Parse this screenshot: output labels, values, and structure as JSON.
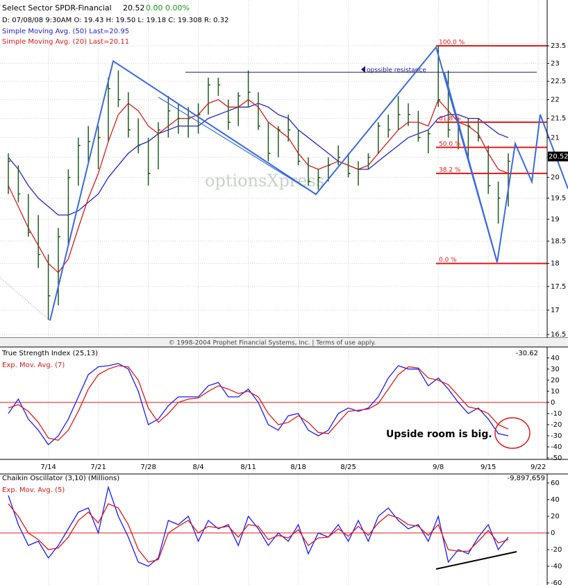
{
  "header": {
    "title": "Select Sector SPDR-Financial",
    "last": "20.52",
    "change": "0.00",
    "change_pct": "0.00%",
    "ohlc": "D: 07/08/08 9:30AM  O: 19.43  H: 19.50  L: 19.18  C: 19.308  R: 0.32"
  },
  "copyright": "© 1998-2004 Prophet Financial Systems, Inc. | Terms of use apply.",
  "watermark": "optionsXpress",
  "chart_data": [
    {
      "type": "ohlc",
      "log": true,
      "grid": true,
      "bar_color": "#1f5c1f",
      "ylim": [
        16.5,
        23.5
      ],
      "yticks": [
        16.5,
        17,
        17.5,
        18,
        18.5,
        19,
        19.5,
        20,
        20.5,
        21,
        21.5,
        22,
        22.5,
        23,
        23.5
      ],
      "high": [
        20.6,
        20.3,
        19.6,
        19.1,
        18.2,
        18.8,
        20.2,
        21.0,
        21.3,
        21.3,
        22.6,
        22.8,
        22.2,
        21.5,
        21.0,
        21.4,
        22.1,
        21.9,
        21.8,
        21.9,
        22.6,
        22.6,
        22.0,
        22.2,
        22.8,
        22.2,
        21.4,
        21.3,
        21.6,
        21.2,
        20.5,
        20.2,
        20.5,
        20.8,
        20.6,
        20.4,
        20.6,
        21.4,
        21.6,
        22.1,
        21.9,
        21.7,
        21.2,
        23.5,
        22.8,
        21.5,
        21.5,
        21.5,
        20.8,
        19.9,
        20.6,
        null,
        null,
        null
      ],
      "low": [
        19.6,
        19.4,
        18.6,
        17.9,
        16.8,
        17.1,
        18.4,
        19.8,
        20.4,
        20.2,
        20.9,
        21.8,
        21.0,
        20.6,
        19.8,
        20.2,
        21.0,
        21.1,
        21.0,
        21.1,
        21.6,
        22.1,
        21.2,
        21.3,
        21.8,
        21.2,
        20.4,
        20.5,
        20.9,
        20.3,
        19.8,
        19.7,
        19.9,
        20.3,
        20.0,
        19.8,
        20.2,
        20.6,
        21.0,
        21.2,
        21.3,
        20.9,
        20.6,
        21.8,
        21.0,
        20.7,
        20.4,
        20.9,
        19.6,
        18.9,
        19.3,
        null,
        null,
        null
      ],
      "close": [
        20.4,
        19.6,
        18.7,
        18.2,
        17.3,
        18.6,
        20.0,
        20.8,
        20.9,
        21.0,
        22.3,
        22.0,
        21.2,
        20.8,
        20.1,
        21.2,
        21.7,
        21.5,
        21.5,
        21.6,
        22.4,
        22.4,
        21.4,
        22.1,
        22.2,
        21.3,
        20.6,
        21.2,
        21.2,
        20.4,
        19.9,
        20.0,
        20.3,
        20.5,
        20.1,
        20.2,
        20.5,
        21.3,
        21.2,
        21.6,
        21.6,
        21.0,
        21.1,
        22.0,
        21.2,
        21.3,
        21.3,
        21.0,
        19.8,
        19.5,
        20.4,
        null,
        null,
        null
      ],
      "series": [
        {
          "name": "Simple Moving Avg. (50) Last=20.95",
          "color": "#2323c8",
          "values": [
            20.5,
            20.2,
            19.8,
            19.5,
            19.3,
            19.1,
            19.1,
            19.2,
            19.4,
            19.6,
            20.0,
            20.3,
            20.6,
            20.8,
            20.9,
            21.1,
            21.2,
            21.3,
            21.3,
            21.3,
            21.5,
            21.6,
            21.7,
            21.8,
            21.8,
            21.9,
            21.8,
            21.6,
            21.5,
            21.2,
            21.0,
            20.8,
            20.6,
            20.4,
            20.3,
            20.2,
            20.2,
            20.4,
            20.6,
            20.8,
            21.0,
            21.1,
            21.2,
            21.5,
            21.6,
            21.6,
            21.5,
            21.5,
            21.3,
            21.1,
            21.0,
            null,
            null,
            null
          ]
        },
        {
          "name": "Simple Moving Avg. (20) Last=20.11",
          "color": "#e01818",
          "values": [
            19.8,
            19.3,
            18.8,
            18.4,
            18.0,
            17.8,
            18.1,
            18.8,
            19.5,
            20.1,
            20.9,
            21.6,
            21.9,
            21.7,
            21.3,
            21.1,
            21.3,
            21.5,
            21.5,
            21.6,
            21.9,
            22.0,
            21.8,
            21.8,
            22.0,
            21.8,
            21.4,
            21.2,
            21.0,
            20.6,
            20.3,
            20.2,
            20.3,
            20.4,
            20.3,
            20.2,
            20.3,
            20.6,
            20.9,
            21.2,
            21.4,
            21.4,
            21.3,
            22.0,
            21.7,
            21.4,
            21.3,
            21.1,
            20.6,
            20.2,
            20.1,
            null,
            null,
            null
          ]
        }
      ],
      "last_price": 20.52,
      "fib_levels": [
        {
          "value": 23.5,
          "label": "100.0 %"
        },
        {
          "value": 21.4,
          "label": "61.8 %"
        },
        {
          "value": 20.75,
          "label": "50.0 %"
        },
        {
          "value": 20.1,
          "label": "38.2 %"
        },
        {
          "value": 18,
          "label": "0.0 %"
        }
      ],
      "fib_color": "#e01818",
      "annotations": [
        {
          "text": "opssible resistance",
          "value": 22.75
        }
      ]
    },
    {
      "type": "line",
      "ylim": [
        -50,
        48
      ],
      "yticks": [
        -50,
        -40,
        -30,
        -20,
        -10,
        0,
        10,
        20,
        30,
        40
      ],
      "zero_line": 0,
      "zero_color": "#e01818",
      "categories": [
        null,
        null,
        null,
        null,
        "7/14",
        null,
        null,
        null,
        null,
        "7/21",
        null,
        null,
        null,
        null,
        "7/28",
        null,
        null,
        null,
        null,
        "8/4",
        null,
        null,
        null,
        null,
        "8/11",
        null,
        null,
        null,
        null,
        "8/18",
        null,
        null,
        null,
        null,
        "8/25",
        null,
        null,
        null,
        null,
        null,
        null,
        null,
        null,
        "9/8",
        null,
        null,
        null,
        null,
        "9/15",
        null,
        null,
        null,
        null,
        "9/22"
      ],
      "series": [
        {
          "name": "True Strength Index (25,13)",
          "color": "#1a1aff",
          "values": [
            -10,
            3,
            -15,
            -25,
            -38,
            -30,
            -15,
            5,
            25,
            32,
            33,
            35,
            30,
            10,
            -20,
            -15,
            -3,
            5,
            5,
            5,
            15,
            18,
            5,
            5,
            12,
            0,
            -20,
            -25,
            -12,
            -10,
            -25,
            -30,
            -25,
            -10,
            -5,
            -8,
            -5,
            5,
            22,
            33,
            30,
            30,
            15,
            22,
            12,
            0,
            -10,
            -5,
            -15,
            -28,
            -30,
            null,
            null,
            null
          ]
        },
        {
          "name": "Exp. Mov. Avg. (7)",
          "color": "#e01818",
          "values": [
            -5,
            -2,
            -8,
            -18,
            -32,
            -34,
            -25,
            -8,
            12,
            25,
            30,
            33,
            32,
            20,
            -5,
            -18,
            -10,
            0,
            3,
            4,
            10,
            15,
            12,
            8,
            10,
            5,
            -10,
            -20,
            -18,
            -12,
            -18,
            -27,
            -28,
            -18,
            -8,
            -7,
            -6,
            -1,
            12,
            25,
            32,
            31,
            22,
            20,
            16,
            6,
            -4,
            -6,
            -10,
            -20,
            -24,
            null,
            null,
            null
          ]
        }
      ],
      "last": -30.62,
      "annotation": "Upside room is big."
    },
    {
      "type": "line",
      "ylim": [
        -62,
        70
      ],
      "yticks": [
        -60,
        -40,
        -20,
        0,
        20,
        40,
        60
      ],
      "zero_line": 0,
      "zero_color": "#e01818",
      "series": [
        {
          "name": "Chaikin Oscillator (3,10) (Millions)",
          "color": "#1a1aff",
          "values": [
            45,
            10,
            -15,
            -10,
            -30,
            -15,
            5,
            25,
            30,
            0,
            55,
            20,
            -5,
            -35,
            -40,
            -30,
            15,
            10,
            20,
            -10,
            15,
            5,
            10,
            -15,
            20,
            5,
            -15,
            0,
            -10,
            10,
            -25,
            0,
            -5,
            10,
            -10,
            15,
            -10,
            20,
            30,
            15,
            5,
            10,
            -10,
            20,
            -35,
            -20,
            -25,
            -5,
            10,
            -20,
            -5,
            null,
            null,
            null
          ]
        },
        {
          "name": "Exp. Mov. Avg. (5)",
          "color": "#e01818",
          "values": [
            35,
            20,
            0,
            -8,
            -20,
            -18,
            -5,
            15,
            25,
            12,
            35,
            30,
            10,
            -20,
            -35,
            -32,
            0,
            8,
            15,
            0,
            8,
            6,
            8,
            -5,
            10,
            8,
            -8,
            -3,
            -6,
            4,
            -15,
            -6,
            -5,
            5,
            -4,
            8,
            -3,
            12,
            22,
            18,
            10,
            8,
            -3,
            10,
            -20,
            -22,
            -22,
            -10,
            3,
            -12,
            -8,
            null,
            null,
            null
          ]
        }
      ],
      "last": {
        "value": -9.897659,
        "label": "-9,897,659"
      }
    }
  ]
}
